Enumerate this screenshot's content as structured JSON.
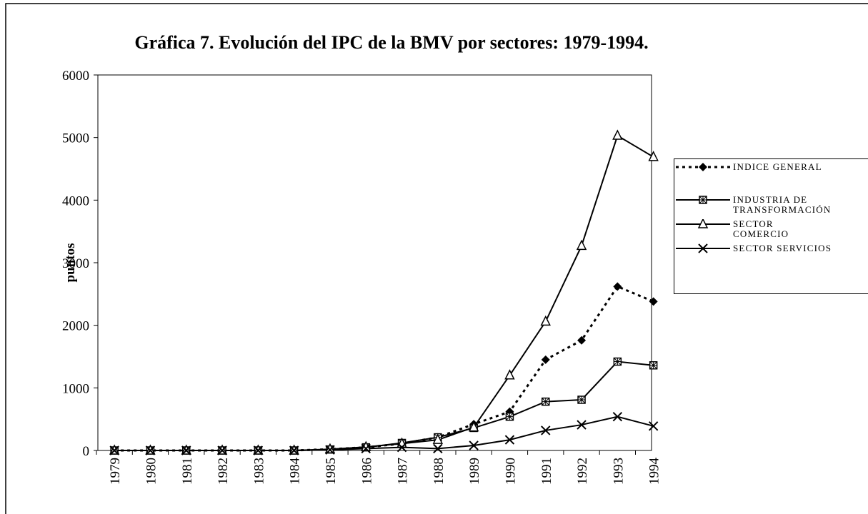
{
  "chart_data": {
    "type": "line",
    "title": "Gráfica 7. Evolución del IPC de la BMV por sectores: 1979-1994.",
    "y_label": "puntos",
    "categories": [
      "1979",
      "1980",
      "1981",
      "1982",
      "1983",
      "1984",
      "1985",
      "1986",
      "1987",
      "1988",
      "1989",
      "1990",
      "1991",
      "1992",
      "1993",
      "1994"
    ],
    "series": [
      {
        "name": "INDICE GENERAL",
        "color": "#000000",
        "dashed": true,
        "marker": "diamond",
        "values": [
          0,
          0,
          0,
          0,
          0,
          0,
          20,
          50,
          110,
          210,
          420,
          620,
          1450,
          1760,
          2620,
          2380
        ]
      },
      {
        "name": "INDUSTRIA DE\nTRANSFORMACIÓN",
        "color": "#000000",
        "dashed": false,
        "marker": "square",
        "values": [
          0,
          0,
          0,
          0,
          0,
          0,
          15,
          50,
          120,
          210,
          360,
          540,
          780,
          810,
          1420,
          1360
        ]
      },
      {
        "name": "SECTOR\nCOMERCIO",
        "color": "#000000",
        "dashed": false,
        "marker": "triangle",
        "values": [
          0,
          0,
          0,
          0,
          0,
          0,
          20,
          55,
          110,
          170,
          370,
          1200,
          2060,
          3270,
          5030,
          4690
        ]
      },
      {
        "name": "SECTOR SERVICIOS",
        "color": "#000000",
        "dashed": false,
        "marker": "x",
        "values": [
          0,
          0,
          0,
          0,
          0,
          0,
          10,
          30,
          50,
          30,
          80,
          170,
          320,
          410,
          540,
          390
        ]
      }
    ],
    "ylim": [
      0,
      6000
    ],
    "yticks": [
      0,
      1000,
      2000,
      3000,
      4000,
      5000,
      6000
    ],
    "grid": false,
    "legend": "right"
  }
}
